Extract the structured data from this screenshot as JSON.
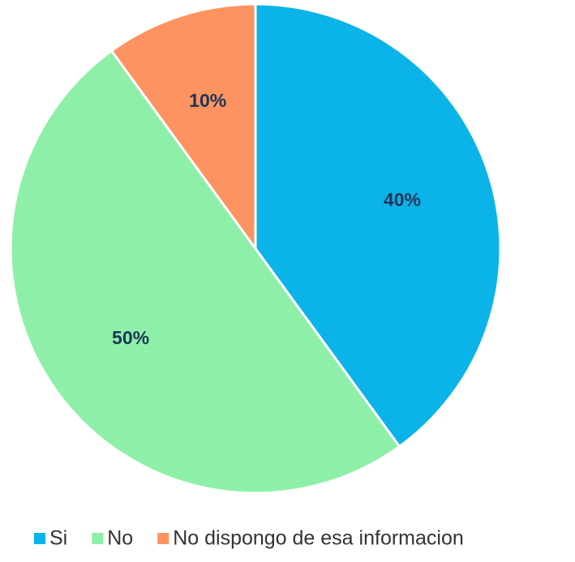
{
  "chart_data": {
    "type": "pie",
    "categories": [
      "Si",
      "No",
      "No dispongo de esa informacion"
    ],
    "values": [
      40,
      50,
      10
    ],
    "value_labels": [
      "40%",
      "50%",
      "10%"
    ],
    "colors": [
      "#0bb4e8",
      "#8ef0a8",
      "#fd9360"
    ],
    "legend": "bottom"
  }
}
